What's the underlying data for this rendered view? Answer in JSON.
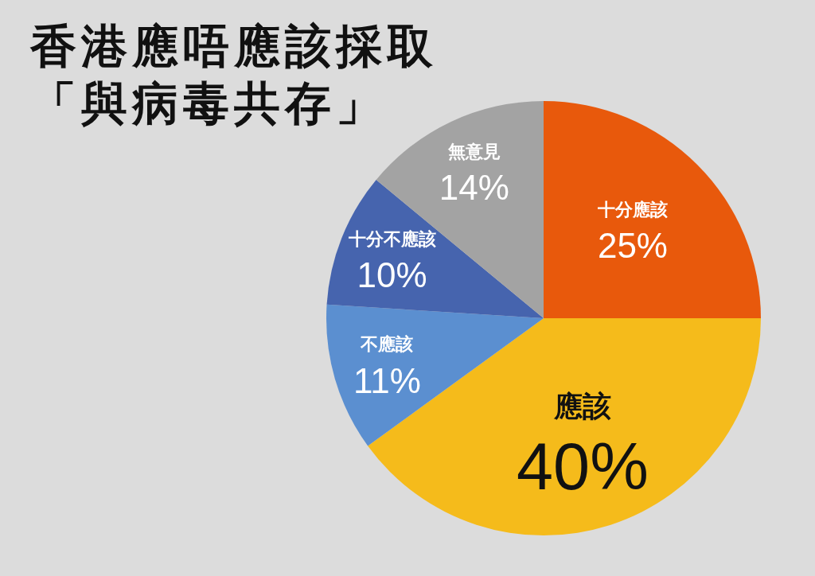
{
  "chart_data": {
    "type": "pie",
    "title": "香港應唔應該採取「與病毒共存」",
    "categories": [
      "十分應該",
      "應該",
      "不應該",
      "十分不應該",
      "無意見"
    ],
    "values": [
      25,
      40,
      11,
      10,
      14
    ],
    "colors": [
      "#e8590c",
      "#f5bb1b",
      "#5b8fd0",
      "#4664ae",
      "#a3a3a3"
    ],
    "value_labels": [
      "25%",
      "40%",
      "11%",
      "10%",
      "14%"
    ]
  }
}
